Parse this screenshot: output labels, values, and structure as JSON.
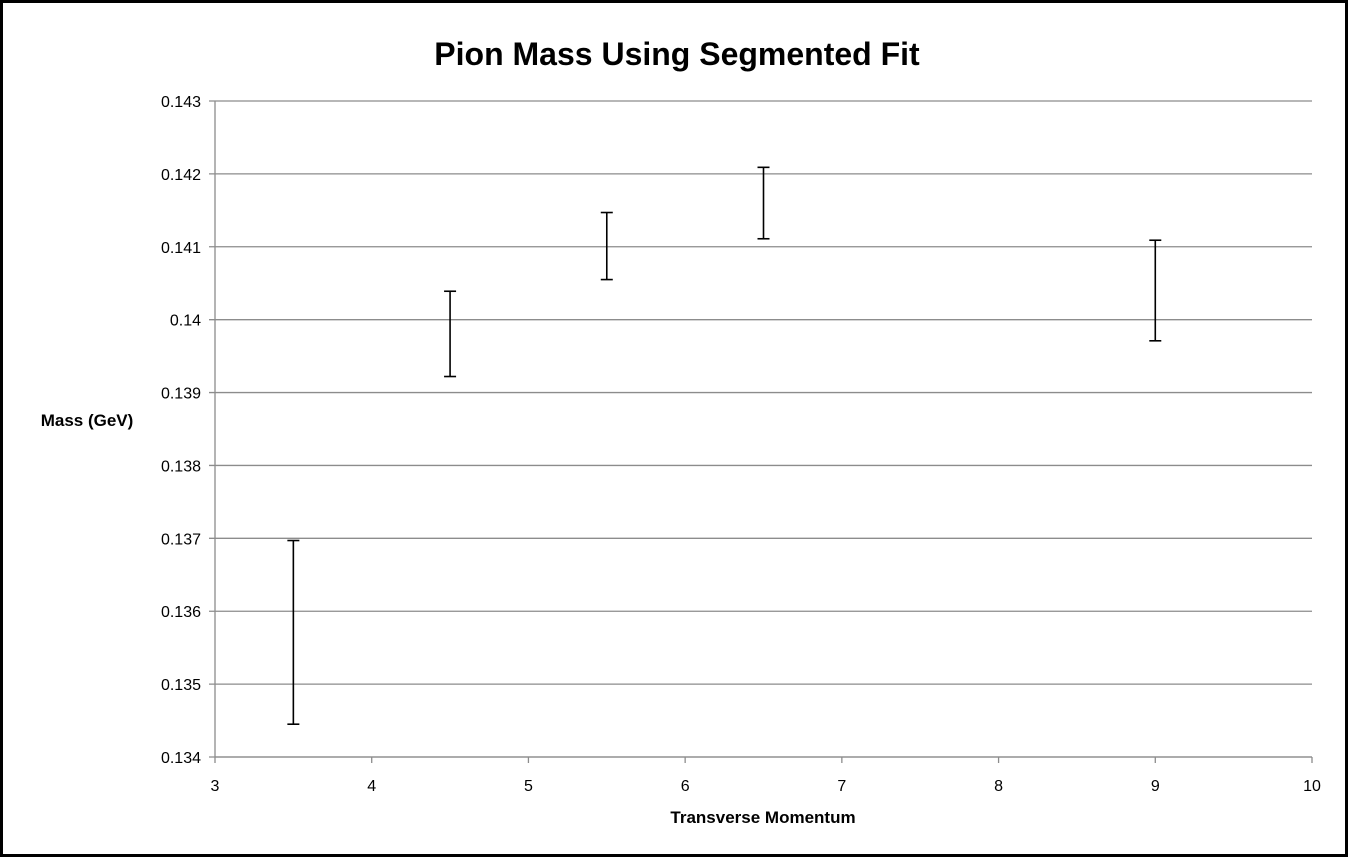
{
  "chart_data": {
    "type": "scatter",
    "title": "Pion Mass Using Segmented Fit",
    "xlabel": "Transverse Momentum",
    "ylabel": "Mass (GeV)",
    "xlim": [
      3,
      10
    ],
    "ylim": [
      0.134,
      0.143
    ],
    "x_ticks": [
      "3",
      "4",
      "5",
      "6",
      "7",
      "8",
      "9",
      "10"
    ],
    "y_ticks": [
      "0.134",
      "0.135",
      "0.136",
      "0.137",
      "0.138",
      "0.139",
      "0.14",
      "0.141",
      "0.142",
      "0.143"
    ],
    "grid": "horizontal",
    "legend": "none",
    "series": [
      {
        "marker": "error-bar-only",
        "color": "#000000",
        "points": [
          {
            "x": 3.5,
            "y_low": 0.13445,
            "y_high": 0.13697
          },
          {
            "x": 4.5,
            "y_low": 0.13922,
            "y_high": 0.14039
          },
          {
            "x": 5.5,
            "y_low": 0.14055,
            "y_high": 0.14147
          },
          {
            "x": 6.5,
            "y_low": 0.14111,
            "y_high": 0.14209
          },
          {
            "x": 9.0,
            "y_low": 0.13971,
            "y_high": 0.14109
          }
        ]
      }
    ]
  }
}
